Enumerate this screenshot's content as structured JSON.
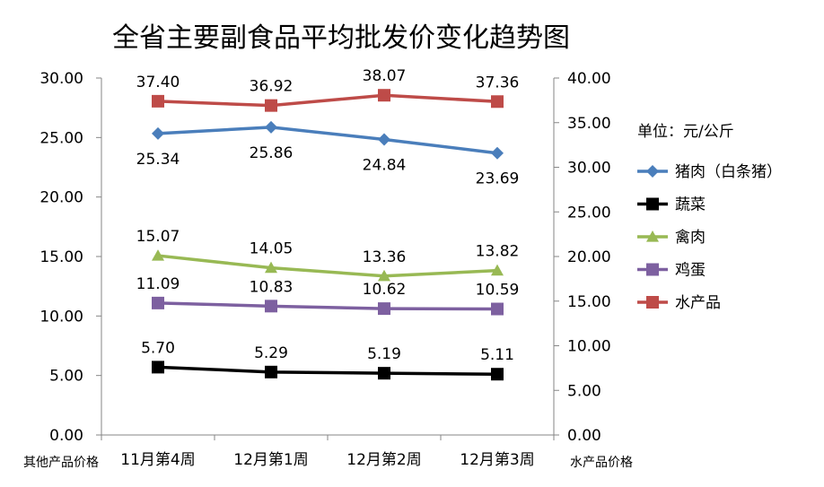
{
  "chart_data": {
    "type": "line",
    "title": "全省主要副食品平均批发价变化趋势图",
    "unit_label": "单位：元/公斤",
    "categories": [
      "11月第4周",
      "12月第1周",
      "12月第2周",
      "12月第3周"
    ],
    "left_axis": {
      "label": "其他产品价格",
      "ylim": [
        0,
        30
      ],
      "ticks": [
        "0.00",
        "5.00",
        "10.00",
        "15.00",
        "20.00",
        "25.00",
        "30.00"
      ]
    },
    "right_axis": {
      "label": "水产品价格",
      "ylim": [
        0,
        40
      ],
      "ticks": [
        "0.00",
        "5.00",
        "10.00",
        "15.00",
        "20.00",
        "25.00",
        "30.00",
        "35.00",
        "40.00"
      ]
    },
    "legend_position": "right",
    "series": [
      {
        "name": "猪肉（白条猪）",
        "axis": "left",
        "color": "#4a7ebb",
        "marker": "diamond",
        "values": [
          25.34,
          25.86,
          24.84,
          23.69
        ],
        "labels": [
          "25.34",
          "25.86",
          "24.84",
          "23.69"
        ],
        "label_pos": "below"
      },
      {
        "name": "蔬菜",
        "axis": "left",
        "color": "#000000",
        "marker": "square",
        "values": [
          5.7,
          5.29,
          5.19,
          5.11
        ],
        "labels": [
          "5.70",
          "5.29",
          "5.19",
          "5.11"
        ],
        "label_pos": "above"
      },
      {
        "name": "禽肉",
        "axis": "left",
        "color": "#98b954",
        "marker": "triangle",
        "values": [
          15.07,
          14.05,
          13.36,
          13.82
        ],
        "labels": [
          "15.07",
          "14.05",
          "13.36",
          "13.82"
        ],
        "label_pos": "above"
      },
      {
        "name": "鸡蛋",
        "axis": "left",
        "color": "#7d60a0",
        "marker": "square",
        "values": [
          11.09,
          10.83,
          10.62,
          10.59
        ],
        "labels": [
          "11.09",
          "10.83",
          "10.62",
          "10.59"
        ],
        "label_pos": "above"
      },
      {
        "name": "水产品",
        "axis": "right",
        "color": "#be4b48",
        "marker": "square",
        "values": [
          37.4,
          36.92,
          38.07,
          37.36
        ],
        "labels": [
          "37.40",
          "36.92",
          "38.07",
          "37.36"
        ],
        "label_pos": "above"
      }
    ]
  }
}
